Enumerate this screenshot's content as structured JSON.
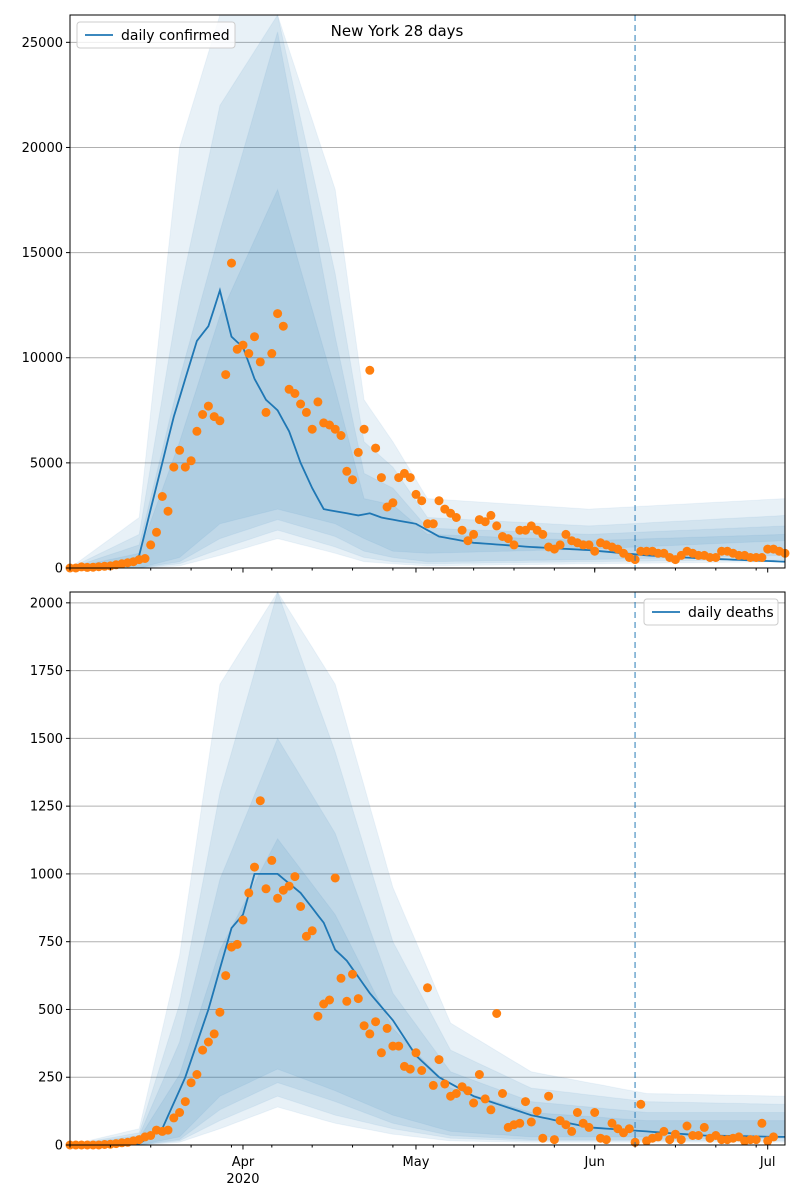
{
  "title": "New York 28 days",
  "chart_data": [
    {
      "type": "line",
      "panel": "top",
      "title": "New York 28 days",
      "legend": {
        "label": "daily confirmed",
        "placement": "top-left"
      },
      "xlim": [
        "2020-03-02",
        "2020-07-04"
      ],
      "ylim": [
        0,
        26300
      ],
      "yticks": [
        0,
        5000,
        10000,
        15000,
        20000,
        25000
      ],
      "grid": "horizontal",
      "vline": "2020-06-08",
      "band_anchor_days": [
        0,
        12,
        19,
        26,
        36,
        46,
        51,
        56,
        62,
        90,
        124
      ],
      "band_outer": [
        {
          "lo": [
            0,
            0,
            500,
            2100,
            2800,
            2100,
            1400,
            800,
            700,
            900,
            1300
          ],
          "hi": [
            0,
            2400,
            20000,
            26300,
            26300,
            18000,
            8000,
            6000,
            3300,
            2800,
            3300
          ]
        }
      ],
      "bands": [
        {
          "lo": [
            0,
            0,
            300,
            1400,
            2300,
            1500,
            800,
            500,
            300,
            400,
            600
          ],
          "hi": [
            0,
            1600,
            13000,
            22000,
            26300,
            14000,
            6000,
            4800,
            2400,
            2000,
            2500
          ]
        },
        {
          "lo": [
            0,
            0,
            200,
            900,
            1800,
            1000,
            500,
            300,
            200,
            300,
            400
          ],
          "hi": [
            0,
            1100,
            9000,
            16000,
            25500,
            11000,
            4500,
            3800,
            1900,
            1600,
            2000
          ]
        },
        {
          "lo": [
            0,
            0,
            100,
            600,
            1400,
            700,
            300,
            200,
            100,
            200,
            300
          ],
          "hi": [
            0,
            700,
            6000,
            12000,
            18000,
            8500,
            3300,
            3000,
            1600,
            1300,
            1600
          ]
        }
      ],
      "series": [
        {
          "name": "daily confirmed",
          "kind": "line",
          "color": "#1f77b4",
          "anchor_days": [
            0,
            10,
            12,
            14,
            16,
            18,
            20,
            22,
            24,
            26,
            28,
            30,
            32,
            34,
            36,
            38,
            40,
            42,
            44,
            46,
            48,
            50,
            52,
            54,
            56,
            60,
            64,
            70,
            80,
            90,
            100,
            110,
            124
          ],
          "values": [
            0,
            150,
            600,
            2800,
            5000,
            7200,
            9000,
            10800,
            11500,
            13200,
            11000,
            10500,
            9000,
            8000,
            7500,
            6500,
            5000,
            3800,
            2800,
            2700,
            2600,
            2500,
            2600,
            2400,
            2300,
            2100,
            1500,
            1200,
            1000,
            850,
            600,
            450,
            300
          ]
        }
      ],
      "observed": {
        "name": "daily confirmed",
        "kind": "scatter",
        "color": "#ff7f0e",
        "start_date": "2020-03-02",
        "values": [
          0,
          0,
          50,
          30,
          40,
          60,
          80,
          100,
          150,
          200,
          250,
          300,
          400,
          450,
          1100,
          1700,
          3400,
          2700,
          4800,
          5600,
          4800,
          5100,
          6500,
          7300,
          7700,
          7200,
          7000,
          9200,
          14500,
          10400,
          10600,
          10200,
          11000,
          9800,
          7400,
          10200,
          12100,
          11500,
          8500,
          8300,
          7800,
          7400,
          6600,
          7900,
          6900,
          6800,
          6600,
          6300,
          4600,
          4200,
          5500,
          6600,
          9400,
          5700,
          4300,
          2900,
          3100,
          4300,
          4500,
          4300,
          3500,
          3200,
          2100,
          2100,
          3200,
          2800,
          2600,
          2400,
          1800,
          1300,
          1600,
          2300,
          2200,
          2500,
          2000,
          1500,
          1400,
          1100,
          1800,
          1800,
          2000,
          1800,
          1600,
          1000,
          900,
          1100,
          1600,
          1300,
          1200,
          1100,
          1100,
          800,
          1200,
          1100,
          1000,
          900,
          700,
          500,
          400,
          800,
          800,
          800,
          700,
          700,
          500,
          400,
          600,
          800,
          700,
          600,
          600,
          500,
          500,
          800,
          800,
          700,
          600,
          600,
          500,
          500,
          500,
          900,
          900,
          800,
          700
        ]
      },
      "xticks": [
        {
          "date": "2020-04-01",
          "label": "Apr",
          "sub": "2020"
        },
        {
          "date": "2020-05-01",
          "label": "May",
          "sub": ""
        },
        {
          "date": "2020-06-01",
          "label": "Jun",
          "sub": ""
        },
        {
          "date": "2020-07-01",
          "label": "Jul",
          "sub": ""
        }
      ]
    },
    {
      "type": "line",
      "panel": "bottom",
      "title": "",
      "legend": {
        "label": "daily deaths",
        "placement": "top-right"
      },
      "xlim": [
        "2020-03-02",
        "2020-07-04"
      ],
      "ylim": [
        0,
        2040
      ],
      "yticks": [
        0,
        250,
        500,
        750,
        1000,
        1250,
        1500,
        1750,
        2000
      ],
      "grid": "horizontal",
      "vline": "2020-06-08",
      "band_anchor_days": [
        0,
        12,
        19,
        26,
        36,
        46,
        56,
        66,
        80,
        100,
        124
      ],
      "band_outer": [
        {
          "lo": [
            0,
            0,
            30,
            180,
            280,
            200,
            110,
            50,
            30,
            30,
            40
          ],
          "hi": [
            0,
            60,
            700,
            1700,
            2040,
            1700,
            950,
            450,
            270,
            190,
            180
          ]
        }
      ],
      "bands": [
        {
          "lo": [
            0,
            0,
            20,
            130,
            230,
            160,
            80,
            35,
            20,
            20,
            25
          ],
          "hi": [
            0,
            45,
            520,
            1300,
            2040,
            1450,
            750,
            350,
            210,
            160,
            150
          ]
        },
        {
          "lo": [
            0,
            0,
            15,
            90,
            180,
            110,
            60,
            25,
            15,
            15,
            15
          ],
          "hi": [
            0,
            35,
            380,
            980,
            1500,
            1150,
            560,
            270,
            160,
            120,
            120
          ]
        },
        {
          "lo": [
            0,
            0,
            10,
            60,
            140,
            80,
            40,
            15,
            10,
            10,
            10
          ],
          "hi": [
            0,
            25,
            260,
            720,
            1130,
            850,
            430,
            210,
            120,
            90,
            90
          ]
        }
      ],
      "series": [
        {
          "name": "daily deaths",
          "kind": "line",
          "color": "#1f77b4",
          "anchor_days": [
            0,
            12,
            16,
            20,
            24,
            28,
            30,
            32,
            36,
            40,
            44,
            46,
            48,
            52,
            56,
            60,
            64,
            70,
            80,
            90,
            100,
            110,
            124
          ],
          "values": [
            0,
            5,
            60,
            250,
            500,
            800,
            850,
            1000,
            1000,
            930,
            820,
            720,
            680,
            560,
            460,
            330,
            250,
            180,
            110,
            65,
            50,
            35,
            30
          ]
        }
      ],
      "observed": {
        "name": "daily deaths",
        "kind": "scatter",
        "color": "#ff7f0e",
        "start_date": "2020-03-02",
        "values": [
          0,
          0,
          0,
          0,
          0,
          0,
          2,
          3,
          5,
          8,
          10,
          15,
          20,
          30,
          35,
          55,
          50,
          55,
          100,
          120,
          160,
          230,
          260,
          350,
          380,
          410,
          490,
          625,
          730,
          740,
          830,
          930,
          1025,
          1270,
          945,
          1050,
          910,
          940,
          955,
          990,
          880,
          770,
          790,
          475,
          520,
          535,
          985,
          615,
          530,
          630,
          540,
          440,
          410,
          455,
          340,
          430,
          365,
          365,
          290,
          280,
          340,
          275,
          580,
          220,
          315,
          225,
          180,
          190,
          215,
          200,
          155,
          260,
          170,
          130,
          485,
          190,
          65,
          75,
          80,
          160,
          85,
          125,
          25,
          180,
          20,
          90,
          75,
          50,
          120,
          80,
          65,
          120,
          25,
          20,
          80,
          60,
          45,
          60,
          10,
          150,
          15,
          25,
          30,
          50,
          20,
          40,
          20,
          70,
          35,
          35,
          65,
          25,
          35,
          20,
          20,
          25,
          30,
          15,
          20,
          20,
          80,
          15,
          30
        ]
      },
      "xticks": [
        {
          "date": "2020-04-01",
          "label": "Apr",
          "sub": "2020"
        },
        {
          "date": "2020-05-01",
          "label": "May",
          "sub": ""
        },
        {
          "date": "2020-06-01",
          "label": "Jun",
          "sub": ""
        },
        {
          "date": "2020-07-01",
          "label": "Jul",
          "sub": ""
        }
      ]
    }
  ]
}
